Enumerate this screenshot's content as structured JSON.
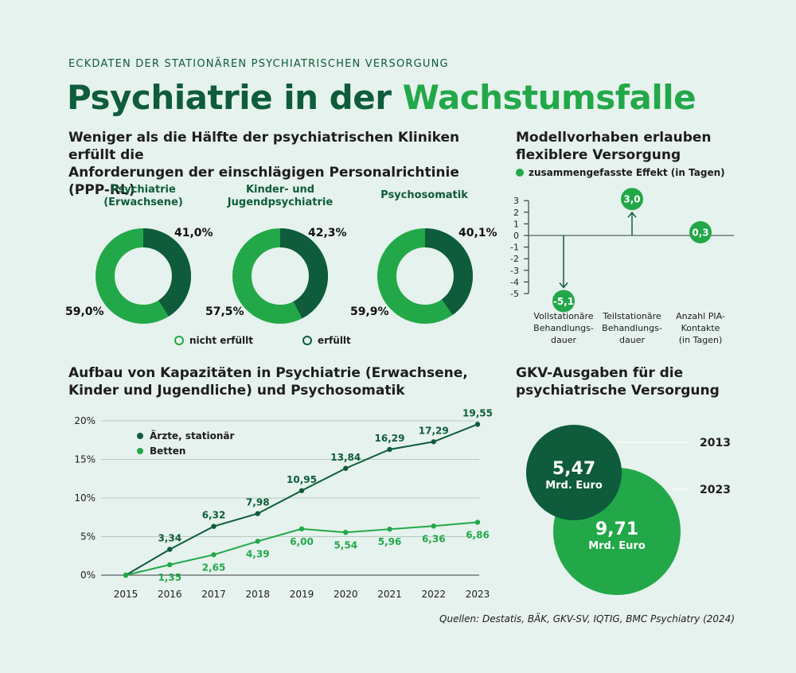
{
  "header": {
    "eyebrow": "ECKDATEN DER STATIONÄREN PSYCHIATRISCHEN VERSORGUNG",
    "title_part1": "Psychiatrie in der ",
    "title_part2": "Wachstumsfalle"
  },
  "colors": {
    "dark_green": "#0e5c3b",
    "light_green": "#22a849",
    "background": "#e6f2ed"
  },
  "donuts": {
    "title_line1": "Weniger als die Hälfte der psychiatrischen Kliniken erfüllt die",
    "title_line2": "Anforderungen der einschlägigen Personalrichtinie (PPP-RL)",
    "legend": {
      "not_met": "nicht erfüllt",
      "met": "erfüllt"
    }
  },
  "effects": {
    "title_line1": "Modellvorhaben erlauben",
    "title_line2": "flexiblere Versorgung",
    "legend": "zusammengefasste Effekt (in Tagen)"
  },
  "capacity": {
    "title_line1": "Aufbau von Kapazitäten in Psychiatrie (Erwachsene,",
    "title_line2": "Kinder und Jugendliche) und Psychosomatik"
  },
  "gkv": {
    "title_line1": "GKV-Ausgaben für die",
    "title_line2": "psychiatrische Versorgung"
  },
  "source": "Quellen: Destatis, BÄK, GKV-SV, IQTIG, BMC Psychiatry (2024)",
  "chart_data": [
    {
      "type": "pie",
      "title": "Psychiatrie (Erwachsene)",
      "labels": [
        "nicht erfüllt",
        "erfüllt"
      ],
      "values": [
        59.0,
        41.0
      ],
      "value_labels": [
        "59,0%",
        "41,0%"
      ]
    },
    {
      "type": "pie",
      "title": "Kinder- und Jugendpsychiatrie",
      "labels": [
        "nicht erfüllt",
        "erfüllt"
      ],
      "values": [
        57.5,
        42.3
      ],
      "value_labels": [
        "57,5%",
        "42,3%"
      ]
    },
    {
      "type": "pie",
      "title": "Psychosomatik",
      "labels": [
        "nicht erfüllt",
        "erfüllt"
      ],
      "values": [
        59.9,
        40.1
      ],
      "value_labels": [
        "59,9%",
        "40,1%"
      ]
    },
    {
      "type": "bar",
      "series_name": "zusammengefasste Effekt (in Tagen)",
      "categories": [
        "Vollstationäre Behandlungs- dauer",
        "Teilstationäre Behandlungs- dauer",
        "Anzahl PIA- Kontakte (in Tagen)"
      ],
      "category_lines": [
        [
          "Vollstationäre",
          "Behandlungs-",
          "dauer"
        ],
        [
          "Teilstationäre",
          "Behandlungs-",
          "dauer"
        ],
        [
          "Anzahl PIA-",
          "Kontakte",
          "(in Tagen)"
        ]
      ],
      "values": [
        -5.1,
        3.0,
        0.3
      ],
      "value_labels": [
        "-5,1",
        "3,0",
        "0,3"
      ],
      "ylim": [
        -5,
        3
      ],
      "yticks": [
        3,
        2,
        1,
        0,
        -1,
        -2,
        -3,
        -4,
        -5
      ],
      "ytick_labels": [
        "3",
        "2",
        "1",
        "0",
        "-1",
        "-2",
        "-3",
        "-4",
        "-5"
      ]
    },
    {
      "type": "line",
      "x": [
        2015,
        2016,
        2017,
        2018,
        2019,
        2020,
        2021,
        2022,
        2023
      ],
      "x_labels": [
        "2015",
        "2016",
        "2017",
        "2018",
        "2019",
        "2020",
        "2021",
        "2022",
        "2023"
      ],
      "series": [
        {
          "name": "Ärzte, stationär",
          "values": [
            0,
            3.34,
            6.32,
            7.98,
            10.95,
            13.84,
            16.29,
            17.29,
            19.55
          ],
          "labels": [
            "",
            "3,34",
            "6,32",
            "7,98",
            "10,95",
            "13,84",
            "16,29",
            "17,29",
            "19,55"
          ]
        },
        {
          "name": "Betten",
          "values": [
            0,
            1.35,
            2.65,
            4.39,
            6.0,
            5.54,
            5.96,
            6.36,
            6.86
          ],
          "labels": [
            "",
            "1,35",
            "2,65",
            "4,39",
            "6,00",
            "5,54",
            "5,96",
            "6,36",
            "6,86"
          ]
        }
      ],
      "ylim": [
        0,
        20
      ],
      "yticks": [
        0,
        5,
        10,
        15,
        20
      ],
      "ytick_labels": [
        "0%",
        "5%",
        "10%",
        "15%",
        "20%"
      ],
      "grid": true,
      "legend": "top-left"
    },
    {
      "type": "bubble",
      "categories": [
        "2013",
        "2023"
      ],
      "values": [
        5.47,
        9.71
      ],
      "value_labels": [
        "5,47",
        "9,71"
      ],
      "unit": "Mrd. Euro"
    }
  ]
}
